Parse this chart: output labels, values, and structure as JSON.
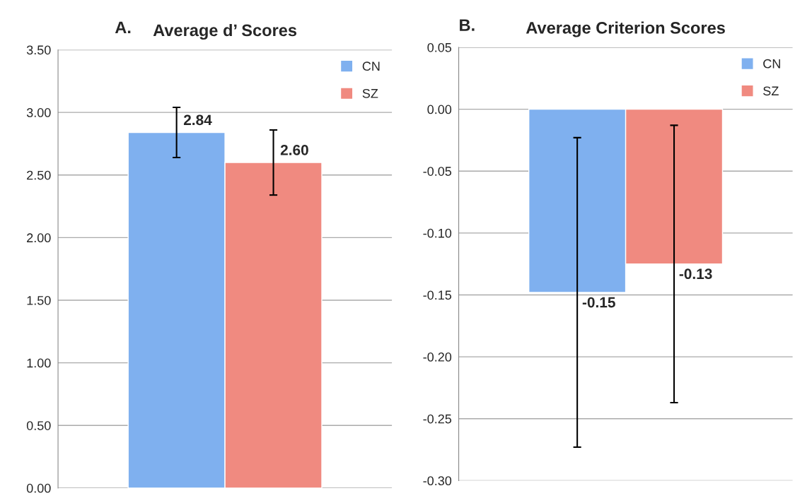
{
  "chart_data": [
    {
      "type": "bar",
      "title": "Average d’ Scores",
      "annotations": [
        "A."
      ],
      "categories": [
        null
      ],
      "series": [
        {
          "name": "CN",
          "color": "#7fb0ef",
          "values": [
            2.84
          ],
          "errors": [
            0.2
          ],
          "value_labels": [
            "2.84"
          ]
        },
        {
          "name": "SZ",
          "color": "#f08a80",
          "values": [
            2.6
          ],
          "errors": [
            0.26
          ],
          "value_labels": [
            "2.60"
          ]
        }
      ],
      "ylim": [
        0,
        3.5
      ],
      "yticks": [
        {
          "value": 0,
          "label": "0.00"
        },
        {
          "value": 0.5,
          "label": "0.50"
        },
        {
          "value": 1,
          "label": "1.00"
        },
        {
          "value": 1.5,
          "label": "1.50"
        },
        {
          "value": 2,
          "label": "2.00"
        },
        {
          "value": 2.5,
          "label": "2.50"
        },
        {
          "value": 3,
          "label": "3.00"
        },
        {
          "value": 3.5,
          "label": "3.50"
        }
      ],
      "grid": "y",
      "legend": "top right"
    },
    {
      "type": "bar",
      "title": "Average Criterion Scores",
      "annotations": [
        "B."
      ],
      "categories": [
        null
      ],
      "series": [
        {
          "name": "CN",
          "color": "#7fb0ef",
          "values": [
            -0.148
          ],
          "errors": [
            0.125
          ],
          "value_labels": [
            "-0.15"
          ]
        },
        {
          "name": "SZ",
          "color": "#f08a80",
          "values": [
            -0.125
          ],
          "errors": [
            0.112
          ],
          "value_labels": [
            "-0.13"
          ]
        }
      ],
      "ylim": [
        -0.3,
        0.05
      ],
      "yticks": [
        {
          "value": -0.3,
          "label": "-0.30"
        },
        {
          "value": -0.25,
          "label": "-0.25"
        },
        {
          "value": -0.2,
          "label": "-0.20"
        },
        {
          "value": -0.15,
          "label": "-0.15"
        },
        {
          "value": -0.1,
          "label": "-0.10"
        },
        {
          "value": -0.05,
          "label": "-0.05"
        },
        {
          "value": 0,
          "label": "0.00"
        },
        {
          "value": 0.05,
          "label": "0.05"
        }
      ],
      "grid": "y",
      "legend": "top right"
    }
  ]
}
